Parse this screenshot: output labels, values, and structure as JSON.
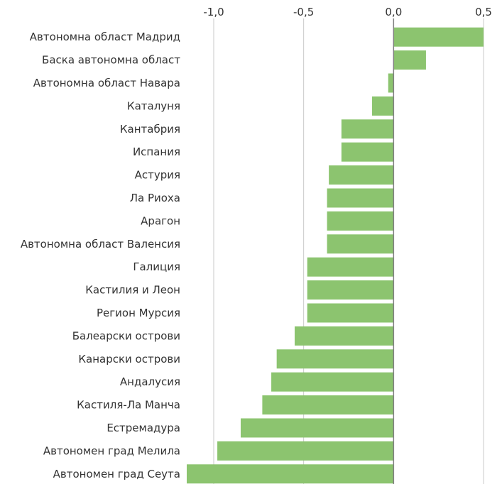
{
  "chart_data": {
    "type": "bar",
    "orientation": "horizontal",
    "title": "",
    "xlabel": "",
    "ylabel": "",
    "xlim": [
      -1.15,
      0.5
    ],
    "x_ticks": [
      -1.0,
      -0.5,
      0.0,
      0.5
    ],
    "x_tick_labels": [
      "-1,0",
      "-0,5",
      "0,0",
      "0,5"
    ],
    "x_axis_position": "top",
    "grid": true,
    "bar_color": "#8cc46f",
    "categories": [
      "Автономна област Мадрид",
      "Баска автономна област",
      "Автономна област Навара",
      "Каталуня",
      "Кантабрия",
      "Испания",
      "Астурия",
      "Ла Риоха",
      "Арагон",
      "Автономна област Валенсия",
      "Галиция",
      "Кастилия и Леон",
      "Регион Мурсия",
      "Балеарски острови",
      "Канарски острови",
      "Андалусия",
      "Кастиля-Ла Манча",
      "Естремадура",
      "Автономен град Мелила",
      "Автономен град Сеута"
    ],
    "values": [
      0.5,
      0.18,
      -0.03,
      -0.12,
      -0.29,
      -0.29,
      -0.36,
      -0.37,
      -0.37,
      -0.37,
      -0.48,
      -0.48,
      -0.48,
      -0.55,
      -0.65,
      -0.68,
      -0.73,
      -0.85,
      -0.98,
      -1.16
    ]
  }
}
